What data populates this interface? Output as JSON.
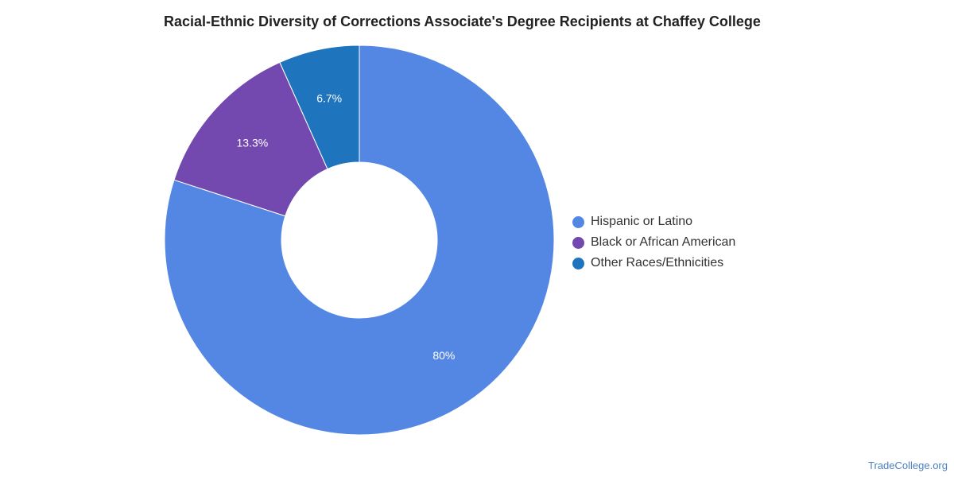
{
  "chart_data": {
    "type": "pie",
    "style": "donut",
    "title": "Racial-Ethnic Diversity of Corrections Associate's Degree Recipients at Chaffey College",
    "slices": [
      {
        "name": "Hispanic or Latino",
        "value": 80,
        "label": "80%",
        "color": "#5487e4"
      },
      {
        "name": "Black or African American",
        "value": 13.3,
        "label": "13.3%",
        "color": "#7349b0"
      },
      {
        "name": "Other Races/Ethnicities",
        "value": 6.7,
        "label": "6.7%",
        "color": "#1f74be"
      }
    ],
    "legend_position": "right"
  },
  "watermark": "TradeCollege.org"
}
